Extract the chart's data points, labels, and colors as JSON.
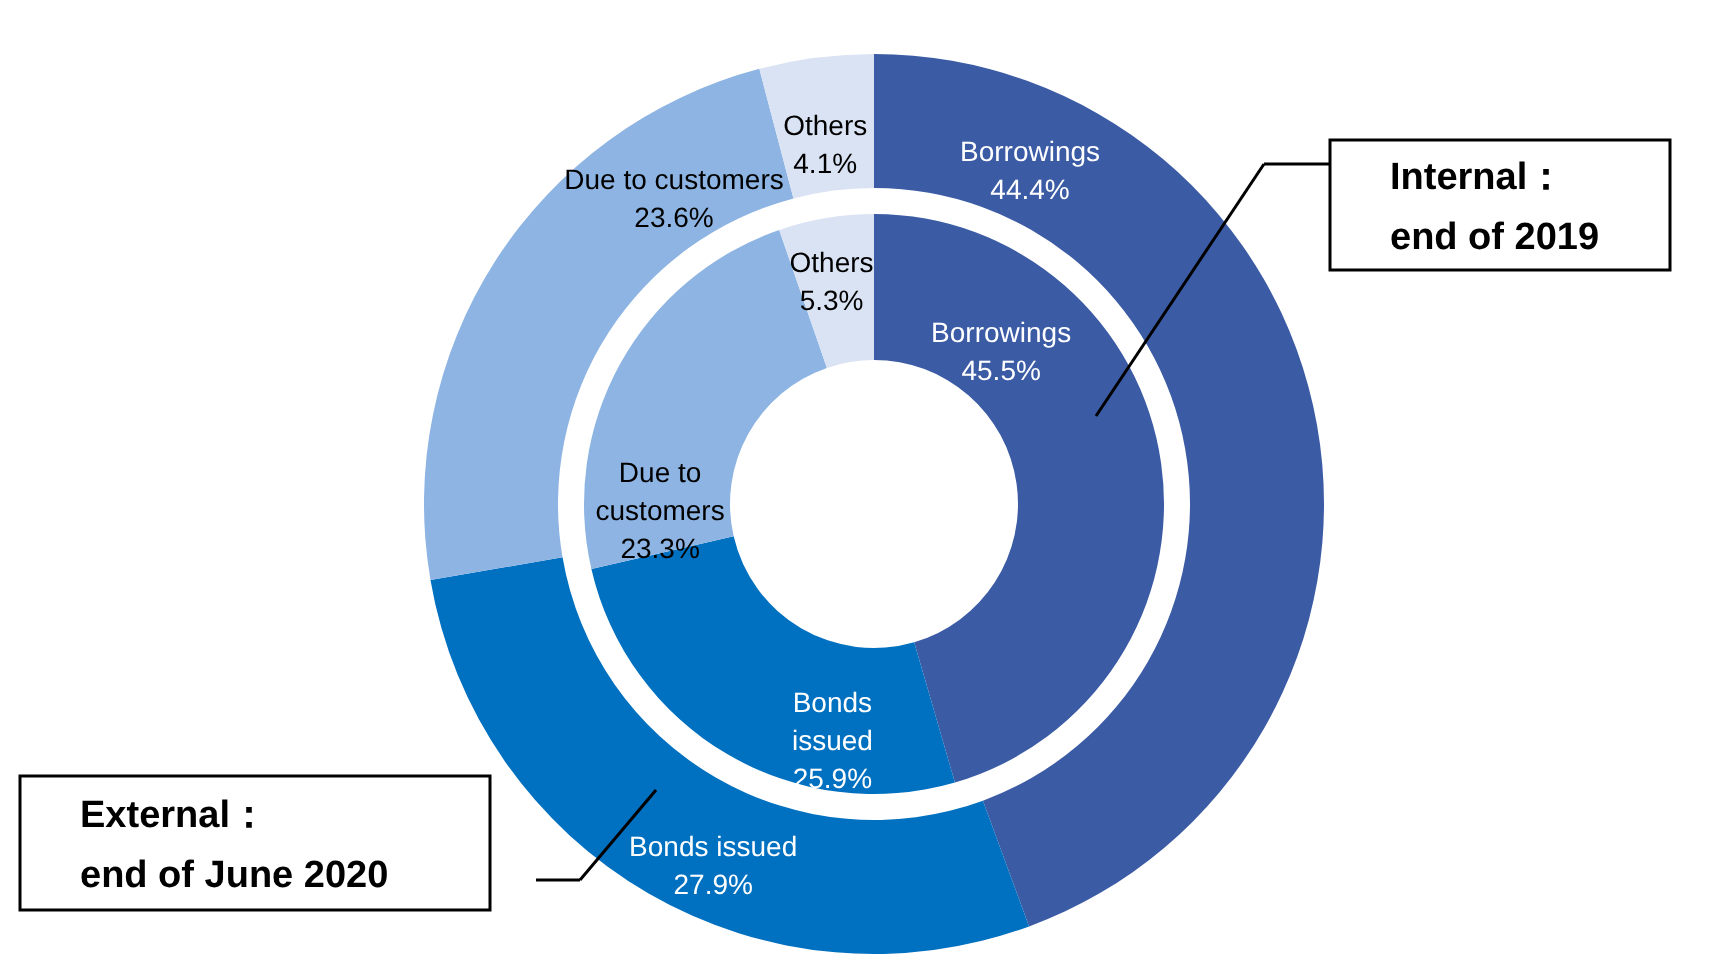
{
  "chart_data": {
    "type": "donut",
    "categories": [
      "Borrowings",
      "Bonds issued",
      "Due to customers",
      "Others"
    ],
    "annotations": [
      "Internal：end of 2019",
      "External：end of June 2020"
    ],
    "series": [
      {
        "values": [
          45.5,
          25.9,
          23.3,
          5.3
        ],
        "colors": [
          "#3b5ba5",
          "#0070c0",
          "#8db4e2",
          "#dae3f3"
        ],
        "value_labels": [
          "45.5%",
          "25.9%",
          "23.3%",
          "5.3%"
        ]
      },
      {
        "values": [
          44.4,
          27.9,
          23.6,
          4.1
        ],
        "colors": [
          "#3b5ba5",
          "#0070c0",
          "#8db4e2",
          "#dae3f3"
        ],
        "value_labels": [
          "44.4%",
          "27.9%",
          "23.6%",
          "4.1%"
        ]
      }
    ]
  }
}
